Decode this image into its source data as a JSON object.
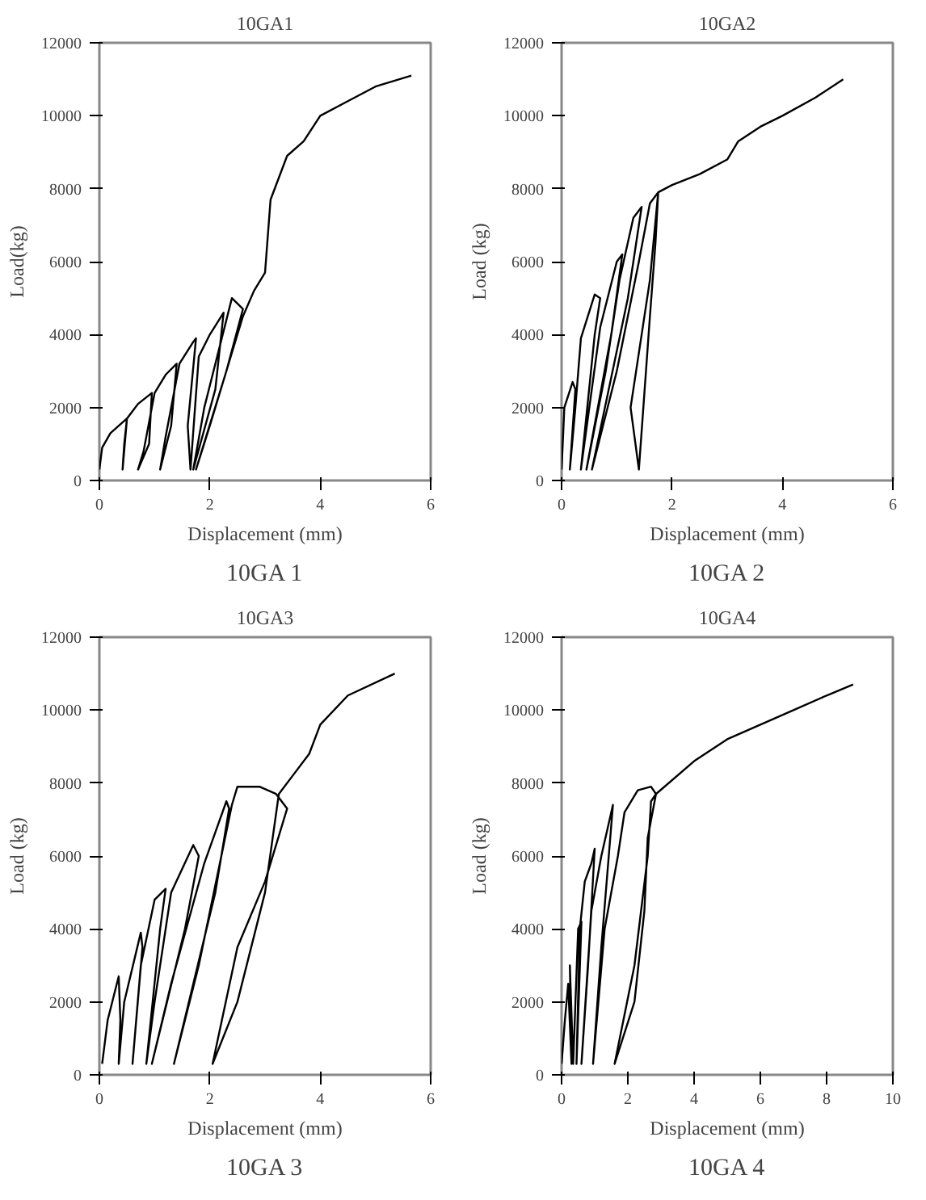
{
  "chart_data": [
    {
      "type": "line",
      "title": "10GA1",
      "xlabel": "Displacement (mm)",
      "ylabel": "Load(kg)",
      "annotations": [
        "10GA 1"
      ],
      "xlim": [
        0,
        6
      ],
      "ylim": [
        0,
        12000
      ],
      "xticks": [
        0,
        2,
        4,
        6
      ],
      "yticks": [
        0,
        2000,
        4000,
        6000,
        8000,
        10000,
        12000
      ],
      "series": [
        {
          "color": "#000000",
          "x": [
            0,
            0.05,
            0.2,
            0.5,
            0.45,
            0.42,
            0.5,
            0.7,
            0.95,
            0.9,
            0.7,
            0.8,
            1.0,
            1.2,
            1.4,
            1.3,
            1.1,
            1.2,
            1.45,
            1.7,
            1.75,
            1.6,
            1.65,
            1.8,
            2.0,
            2.25,
            2.1,
            1.7,
            1.9,
            2.4,
            2.6,
            2.3,
            1.75,
            2.0,
            2.6,
            2.8,
            3.0,
            3.1,
            3.4,
            3.7,
            4.0,
            4.5,
            5.0,
            5.65
          ],
          "values": [
            300,
            900,
            1300,
            1700,
            1000,
            300,
            1700,
            2100,
            2400,
            1000,
            300,
            800,
            2400,
            2900,
            3200,
            1500,
            300,
            1200,
            3200,
            3800,
            3900,
            1500,
            300,
            3400,
            4000,
            4600,
            2500,
            300,
            2000,
            5000,
            4700,
            3000,
            300,
            1500,
            4500,
            5200,
            5700,
            7700,
            8900,
            9300,
            10000,
            10400,
            10800,
            11100
          ]
        }
      ]
    },
    {
      "type": "line",
      "title": "10GA2",
      "xlabel": "Displacement (mm)",
      "ylabel": "Load (kg)",
      "annotations": [
        "10GA 2"
      ],
      "xlim": [
        0,
        6
      ],
      "ylim": [
        0,
        12000
      ],
      "xticks": [
        0,
        2,
        4,
        6
      ],
      "yticks": [
        0,
        2000,
        4000,
        6000,
        8000,
        10000,
        12000
      ],
      "series": [
        {
          "color": "#000000",
          "x": [
            0,
            0.05,
            0.2,
            0.25,
            0.15,
            0.25,
            0.35,
            0.6,
            0.7,
            0.6,
            0.35,
            0.7,
            1.0,
            1.1,
            0.9,
            0.45,
            0.8,
            1.05,
            1.3,
            1.45,
            1.2,
            0.55,
            1.0,
            1.4,
            1.6,
            1.75,
            1.6,
            1.25,
            1.4,
            1.6,
            1.7,
            1.75,
            2.0,
            2.5,
            3.0,
            3.2,
            3.6,
            4.0,
            4.6,
            5.1
          ],
          "values": [
            300,
            2000,
            2700,
            2500,
            300,
            2000,
            3900,
            5100,
            5000,
            4000,
            300,
            4200,
            6000,
            6200,
            4000,
            300,
            3000,
            5500,
            7200,
            7500,
            5000,
            300,
            3000,
            6000,
            7600,
            7900,
            5500,
            2000,
            300,
            4500,
            6500,
            7900,
            8100,
            8400,
            8800,
            9300,
            9700,
            10000,
            10500,
            11000
          ]
        }
      ]
    },
    {
      "type": "line",
      "title": "10GA3",
      "xlabel": "Displacement (mm)",
      "ylabel": "Load (kg)",
      "annotations": [
        "10GA 3"
      ],
      "xlim": [
        0,
        6
      ],
      "ylim": [
        0,
        12000
      ],
      "xticks": [
        0,
        2,
        4,
        6
      ],
      "yticks": [
        0,
        2000,
        4000,
        6000,
        8000,
        10000,
        12000
      ],
      "series": [
        {
          "color": "#000000",
          "x": [
            0.05,
            0.15,
            0.35,
            0.38,
            0.35,
            0.45,
            0.75,
            0.78,
            0.6,
            0.75,
            1.0,
            1.2,
            1.1,
            0.85,
            1.0,
            1.3,
            1.7,
            1.8,
            1.55,
            0.95,
            1.3,
            1.9,
            2.3,
            2.35,
            2.1,
            1.35,
            1.8,
            2.4,
            2.5,
            2.9,
            3.2,
            3.4,
            3.0,
            2.5,
            2.05,
            2.5,
            3.0,
            3.25,
            3.5,
            3.8,
            4.0,
            4.5,
            5.35
          ],
          "values": [
            300,
            1500,
            2700,
            1500,
            300,
            2000,
            3900,
            3500,
            300,
            3000,
            4800,
            5100,
            4000,
            300,
            2000,
            5000,
            6300,
            6000,
            4000,
            300,
            2500,
            5800,
            7500,
            7300,
            5000,
            300,
            3000,
            7400,
            7900,
            7900,
            7700,
            7300,
            5300,
            3500,
            300,
            2000,
            5000,
            7700,
            8200,
            8800,
            9600,
            10400,
            11000
          ]
        }
      ]
    },
    {
      "type": "line",
      "title": "10GA4",
      "xlabel": "Displacement (mm)",
      "ylabel": "Load (kg)",
      "annotations": [
        "10GA 4"
      ],
      "xlim": [
        0,
        10
      ],
      "ylim": [
        0,
        12000
      ],
      "xticks": [
        0,
        2,
        4,
        6,
        8,
        10
      ],
      "yticks": [
        0,
        2000,
        4000,
        6000,
        8000,
        10000,
        12000
      ],
      "series": [
        {
          "color": "#000000",
          "x": [
            0,
            0.1,
            0.2,
            0.3,
            0.25,
            0.35,
            0.5,
            0.6,
            0.45,
            0.55,
            0.7,
            0.9,
            1.0,
            0.8,
            0.6,
            0.9,
            1.2,
            1.55,
            1.2,
            0.95,
            1.3,
            1.7,
            1.9,
            2.3,
            2.7,
            2.85,
            2.6,
            2.5,
            2.2,
            1.6,
            2.2,
            2.6,
            2.7,
            2.85,
            4,
            5,
            6,
            7,
            8,
            8.8
          ],
          "values": [
            300,
            1500,
            2500,
            300,
            3000,
            300,
            4000,
            4200,
            300,
            4000,
            5300,
            5800,
            6200,
            3000,
            300,
            4500,
            6000,
            7400,
            3500,
            300,
            4000,
            6000,
            7200,
            7800,
            7900,
            7700,
            6500,
            4500,
            2000,
            300,
            3000,
            6000,
            7500,
            7700,
            8600,
            9200,
            9600,
            10000,
            10400,
            10700
          ]
        }
      ]
    }
  ]
}
